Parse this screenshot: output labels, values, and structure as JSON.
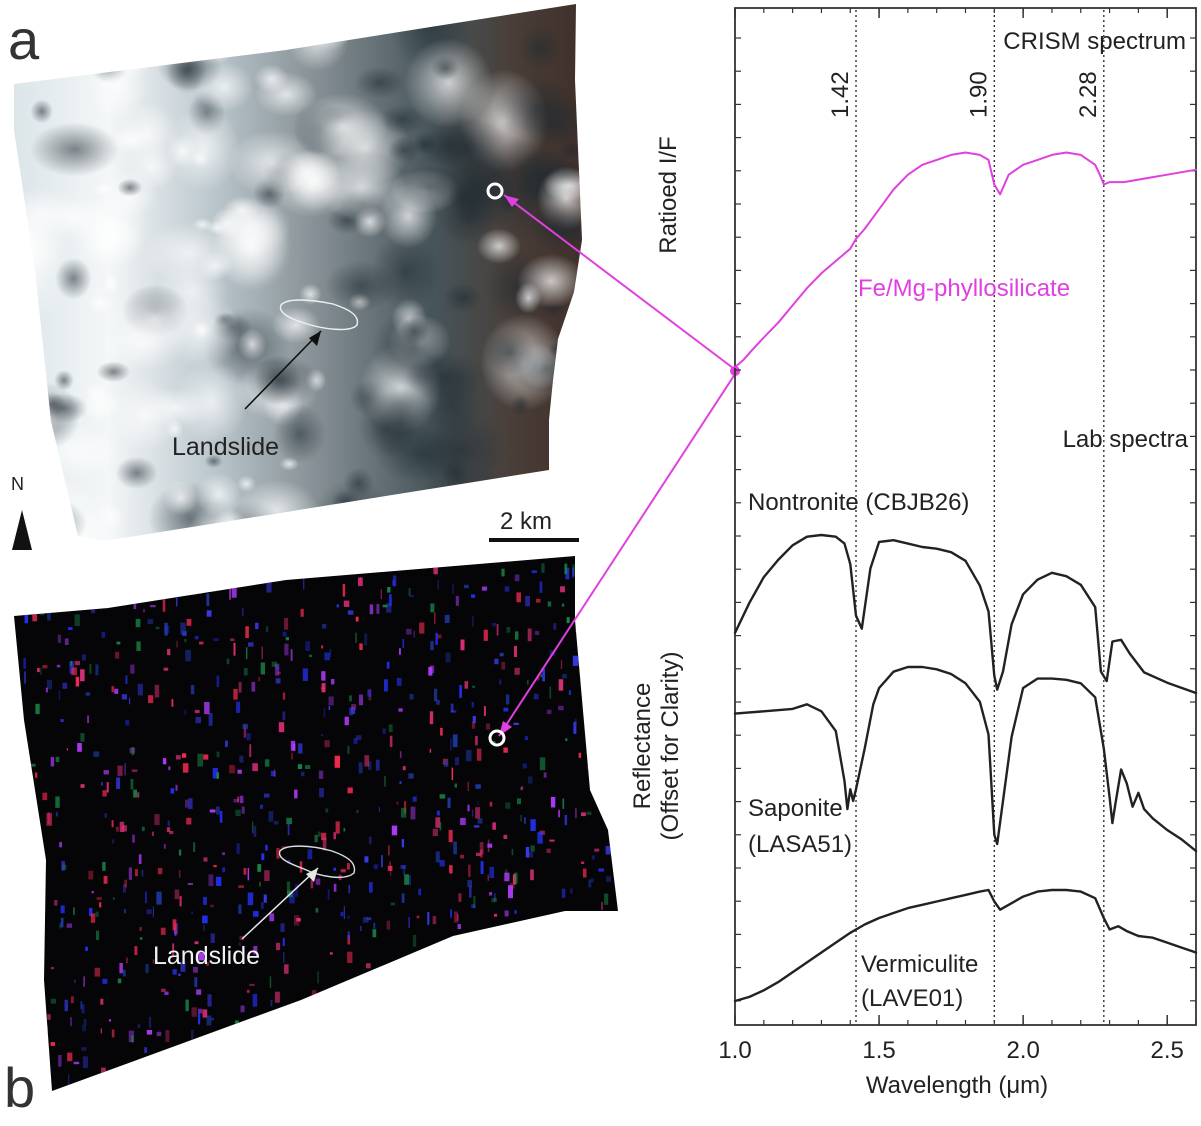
{
  "panels": {
    "a": {
      "label": "a",
      "annotation": "Landslide",
      "north_label": "N",
      "scale_bar_label": "2 km"
    },
    "b": {
      "label": "b",
      "annotation": "Landslide"
    }
  },
  "chart_data": {
    "type": "line",
    "xlabel": "Wavelength (μm)",
    "xlim": [
      1.0,
      2.6
    ],
    "xticks": [
      "1.0",
      "1.5",
      "2.0",
      "2.5"
    ],
    "grid": false,
    "top_section_title": "CRISM spectrum",
    "top_ylabel": "Ratioed I/F",
    "bottom_section_title": "Lab spectra",
    "bottom_ylabel": [
      "Reflectance",
      "(Offset for Clarity)"
    ],
    "vertical_lines": [
      {
        "label": "1.42",
        "value": 1.42
      },
      {
        "label": "1.90",
        "value": 1.9
      },
      {
        "label": "2.28",
        "value": 2.28
      }
    ],
    "series": [
      {
        "name": "Fe/Mg-phyllosilicate",
        "group": "crism",
        "color": "#e040e0",
        "x": [
          1.0,
          1.03,
          1.06,
          1.1,
          1.15,
          1.2,
          1.25,
          1.3,
          1.35,
          1.4,
          1.42,
          1.45,
          1.5,
          1.55,
          1.6,
          1.65,
          1.7,
          1.75,
          1.8,
          1.85,
          1.88,
          1.9,
          1.92,
          1.95,
          2.0,
          2.05,
          2.1,
          2.15,
          2.2,
          2.25,
          2.27,
          2.28,
          2.3,
          2.35,
          2.4,
          2.45,
          2.5,
          2.55,
          2.6
        ],
        "y": [
          0.02,
          0.05,
          0.09,
          0.14,
          0.2,
          0.27,
          0.34,
          0.4,
          0.45,
          0.5,
          0.54,
          0.58,
          0.66,
          0.74,
          0.8,
          0.84,
          0.86,
          0.88,
          0.89,
          0.88,
          0.86,
          0.76,
          0.72,
          0.8,
          0.84,
          0.86,
          0.88,
          0.89,
          0.88,
          0.84,
          0.79,
          0.76,
          0.77,
          0.77,
          0.78,
          0.79,
          0.8,
          0.81,
          0.82
        ]
      },
      {
        "name": "Nontronite (CBJB26)",
        "group": "lab",
        "color": "#222222",
        "x": [
          1.0,
          1.05,
          1.1,
          1.15,
          1.2,
          1.25,
          1.3,
          1.35,
          1.38,
          1.4,
          1.42,
          1.44,
          1.47,
          1.5,
          1.55,
          1.6,
          1.65,
          1.7,
          1.75,
          1.8,
          1.85,
          1.88,
          1.9,
          1.91,
          1.93,
          1.96,
          2.0,
          2.05,
          2.1,
          2.15,
          2.2,
          2.25,
          2.27,
          2.29,
          2.31,
          2.34,
          2.37,
          2.42,
          2.5,
          2.6
        ],
        "y": [
          4.0,
          4.35,
          4.65,
          4.85,
          5.02,
          5.12,
          5.14,
          5.12,
          5.04,
          4.8,
          4.2,
          4.05,
          4.75,
          5.06,
          5.08,
          5.04,
          5.0,
          4.98,
          4.94,
          4.84,
          4.55,
          4.25,
          3.5,
          3.34,
          3.55,
          4.1,
          4.45,
          4.62,
          4.7,
          4.66,
          4.56,
          4.3,
          3.55,
          3.44,
          3.9,
          3.92,
          3.76,
          3.54,
          3.42,
          3.3
        ]
      },
      {
        "name": "Saponite (LASA51)",
        "group": "lab",
        "color": "#222222",
        "x": [
          1.0,
          1.1,
          1.2,
          1.25,
          1.3,
          1.35,
          1.38,
          1.39,
          1.4,
          1.41,
          1.42,
          1.45,
          1.48,
          1.5,
          1.55,
          1.6,
          1.65,
          1.7,
          1.75,
          1.8,
          1.85,
          1.88,
          1.9,
          1.91,
          1.93,
          1.96,
          2.0,
          2.05,
          2.1,
          2.15,
          2.2,
          2.25,
          2.28,
          2.3,
          2.31,
          2.32,
          2.34,
          2.36,
          2.38,
          2.4,
          2.42,
          2.45,
          2.5,
          2.55,
          2.6
        ],
        "y": [
          3.2,
          3.22,
          3.24,
          3.28,
          3.22,
          3.05,
          2.62,
          2.38,
          2.55,
          2.45,
          2.55,
          2.9,
          3.28,
          3.42,
          3.56,
          3.6,
          3.6,
          3.58,
          3.54,
          3.46,
          3.3,
          3.02,
          2.16,
          2.08,
          2.45,
          3.0,
          3.42,
          3.5,
          3.5,
          3.49,
          3.46,
          3.34,
          2.9,
          2.48,
          2.26,
          2.42,
          2.72,
          2.6,
          2.4,
          2.52,
          2.38,
          2.3,
          2.2,
          2.12,
          2.02
        ]
      },
      {
        "name": "Vermiculite (LAVE01)",
        "group": "lab",
        "color": "#222222",
        "x": [
          1.0,
          1.05,
          1.1,
          1.15,
          1.2,
          1.25,
          1.3,
          1.35,
          1.4,
          1.45,
          1.5,
          1.55,
          1.6,
          1.65,
          1.7,
          1.75,
          1.8,
          1.85,
          1.88,
          1.9,
          1.92,
          1.95,
          2.0,
          2.05,
          2.1,
          2.15,
          2.2,
          2.25,
          2.28,
          2.3,
          2.33,
          2.36,
          2.4,
          2.45,
          2.5,
          2.55,
          2.6
        ],
        "y": [
          0.55,
          0.6,
          0.68,
          0.78,
          0.9,
          1.02,
          1.14,
          1.26,
          1.38,
          1.48,
          1.56,
          1.62,
          1.68,
          1.72,
          1.76,
          1.8,
          1.84,
          1.88,
          1.9,
          1.76,
          1.66,
          1.72,
          1.82,
          1.88,
          1.9,
          1.9,
          1.88,
          1.8,
          1.56,
          1.42,
          1.46,
          1.4,
          1.34,
          1.32,
          1.26,
          1.2,
          1.14
        ]
      }
    ],
    "lab_labels": {
      "nontronite": "Nontronite (CBJB26)",
      "saponite_line1": "Saponite",
      "saponite_line2": "(LASA51)",
      "vermiculite_line1": "Vermiculite",
      "vermiculite_line2": "(LAVE01)"
    }
  }
}
